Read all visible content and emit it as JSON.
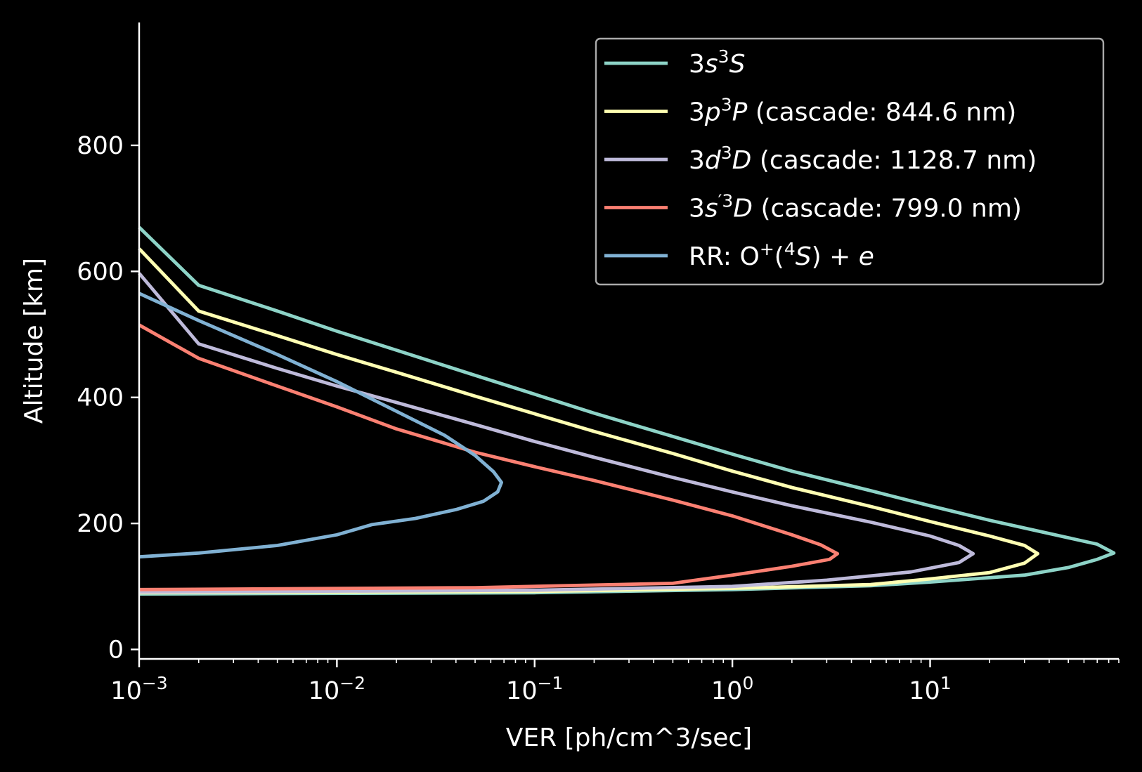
{
  "chart_data": {
    "type": "line",
    "xlabel": "VER [ph/cm^3/sec]",
    "ylabel": "Altitude [km]",
    "xscale": "log",
    "xlim": [
      0.001,
      90
    ],
    "ylim": [
      -15,
      995
    ],
    "grid": false,
    "legend_position": "top-right",
    "background": "#000000",
    "x_ticks": [
      {
        "value": 0.001,
        "base": "10",
        "exp": "−3"
      },
      {
        "value": 0.01,
        "base": "10",
        "exp": "−2"
      },
      {
        "value": 0.1,
        "base": "10",
        "exp": "−1"
      },
      {
        "value": 1,
        "base": "10",
        "exp": "0"
      },
      {
        "value": 10,
        "base": "10",
        "exp": "1"
      }
    ],
    "y_ticks": [
      {
        "value": 0,
        "label": "0"
      },
      {
        "value": 200,
        "label": "200"
      },
      {
        "value": 400,
        "label": "400"
      },
      {
        "value": 600,
        "label": "600"
      },
      {
        "value": 800,
        "label": "800"
      }
    ],
    "series": [
      {
        "legend": [
          {
            "text": "3",
            "style": "normal"
          },
          {
            "text": "s",
            "style": "italic"
          },
          {
            "text": "3",
            "style": "sup"
          },
          {
            "text": "S",
            "style": "italic"
          }
        ],
        "color": "#8dd3c7",
        "points": [
          [
            0.001,
            88
          ],
          [
            0.1,
            90
          ],
          [
            1,
            95
          ],
          [
            5,
            101
          ],
          [
            10,
            107
          ],
          [
            30,
            118
          ],
          [
            50,
            130
          ],
          [
            70,
            143
          ],
          [
            85,
            153
          ],
          [
            70,
            167
          ],
          [
            40,
            184
          ],
          [
            20,
            205
          ],
          [
            10,
            228
          ],
          [
            5,
            252
          ],
          [
            2,
            283
          ],
          [
            1,
            310
          ],
          [
            0.5,
            338
          ],
          [
            0.2,
            375
          ],
          [
            0.1,
            405
          ],
          [
            0.05,
            435
          ],
          [
            0.02,
            475
          ],
          [
            0.01,
            505
          ],
          [
            0.005,
            537
          ],
          [
            0.002,
            578
          ],
          [
            0.001,
            670
          ]
        ]
      },
      {
        "legend": [
          {
            "text": "3",
            "style": "normal"
          },
          {
            "text": "p",
            "style": "italic"
          },
          {
            "text": "3",
            "style": "sup"
          },
          {
            "text": "P",
            "style": "italic"
          },
          {
            "text": " (cascade: 844.6 nm)",
            "style": "normal"
          }
        ],
        "color": "#ffffb3",
        "points": [
          [
            0.001,
            90
          ],
          [
            0.1,
            92
          ],
          [
            1,
            97
          ],
          [
            5,
            103
          ],
          [
            10,
            112
          ],
          [
            20,
            122
          ],
          [
            30,
            137
          ],
          [
            35,
            152
          ],
          [
            30,
            165
          ],
          [
            20,
            180
          ],
          [
            10,
            203
          ],
          [
            5,
            227
          ],
          [
            2,
            257
          ],
          [
            1,
            283
          ],
          [
            0.5,
            311
          ],
          [
            0.2,
            346
          ],
          [
            0.1,
            374
          ],
          [
            0.05,
            402
          ],
          [
            0.02,
            440
          ],
          [
            0.01,
            468
          ],
          [
            0.005,
            498
          ],
          [
            0.002,
            537
          ],
          [
            0.001,
            636
          ]
        ]
      },
      {
        "legend": [
          {
            "text": "3",
            "style": "normal"
          },
          {
            "text": "d",
            "style": "italic"
          },
          {
            "text": "3",
            "style": "sup"
          },
          {
            "text": "D",
            "style": "italic"
          },
          {
            "text": " (cascade: 1128.7 nm)",
            "style": "normal"
          }
        ],
        "color": "#bebada",
        "points": [
          [
            0.001,
            91
          ],
          [
            0.1,
            94
          ],
          [
            1,
            100
          ],
          [
            3,
            110
          ],
          [
            8,
            123
          ],
          [
            14,
            138
          ],
          [
            16.5,
            152
          ],
          [
            14,
            165
          ],
          [
            10,
            180
          ],
          [
            5,
            202
          ],
          [
            2,
            228
          ],
          [
            1,
            250
          ],
          [
            0.5,
            273
          ],
          [
            0.2,
            305
          ],
          [
            0.1,
            330
          ],
          [
            0.05,
            357
          ],
          [
            0.02,
            392
          ],
          [
            0.01,
            418
          ],
          [
            0.005,
            446
          ],
          [
            0.002,
            485
          ],
          [
            0.001,
            597
          ]
        ]
      },
      {
        "legend": [
          {
            "text": "3",
            "style": "normal"
          },
          {
            "text": "s",
            "style": "italic"
          },
          {
            "text": "′3",
            "style": "sup"
          },
          {
            "text": "D",
            "style": "italic"
          },
          {
            "text": " (cascade: 799.0 nm)",
            "style": "normal"
          }
        ],
        "color": "#fb8072",
        "points": [
          [
            0.001,
            95
          ],
          [
            0.05,
            98
          ],
          [
            0.5,
            105
          ],
          [
            1,
            118
          ],
          [
            2,
            132
          ],
          [
            3.1,
            143
          ],
          [
            3.4,
            152
          ],
          [
            2.8,
            166
          ],
          [
            2,
            182
          ],
          [
            1,
            212
          ],
          [
            0.5,
            237
          ],
          [
            0.2,
            268
          ],
          [
            0.1,
            290
          ],
          [
            0.05,
            313
          ],
          [
            0.02,
            350
          ],
          [
            0.01,
            385
          ],
          [
            0.005,
            418
          ],
          [
            0.002,
            462
          ],
          [
            0.001,
            515
          ]
        ]
      },
      {
        "legend": [
          {
            "text": "RR: O",
            "style": "normal"
          },
          {
            "text": "+",
            "style": "sup"
          },
          {
            "text": "(",
            "style": "normal"
          },
          {
            "text": "4",
            "style": "sup"
          },
          {
            "text": "S",
            "style": "italic"
          },
          {
            "text": ") + ",
            "style": "normal"
          },
          {
            "text": "e",
            "style": "italic"
          }
        ],
        "color": "#80b1d3",
        "points": [
          [
            0.001,
            147
          ],
          [
            0.002,
            153
          ],
          [
            0.005,
            165
          ],
          [
            0.01,
            182
          ],
          [
            0.015,
            198
          ],
          [
            0.025,
            208
          ],
          [
            0.04,
            222
          ],
          [
            0.055,
            235
          ],
          [
            0.065,
            250
          ],
          [
            0.068,
            265
          ],
          [
            0.062,
            282
          ],
          [
            0.05,
            308
          ],
          [
            0.035,
            340
          ],
          [
            0.02,
            378
          ],
          [
            0.01,
            425
          ],
          [
            0.005,
            468
          ],
          [
            0.002,
            522
          ],
          [
            0.001,
            565
          ]
        ]
      }
    ]
  }
}
